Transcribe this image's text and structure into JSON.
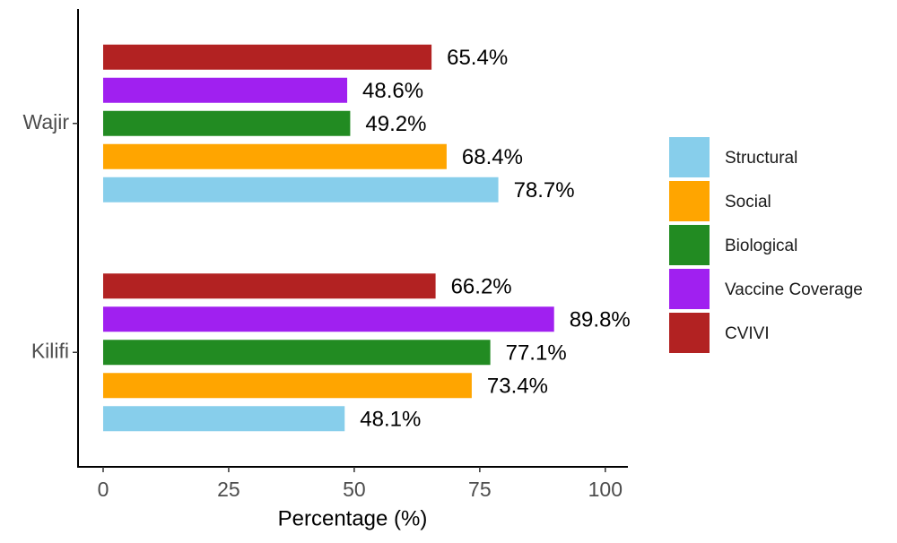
{
  "chart_data": {
    "type": "bar",
    "orientation": "horizontal",
    "categories": [
      "Wajir",
      "Kilifi"
    ],
    "series": [
      {
        "name": "Structural",
        "color": "#87ceeb",
        "values": [
          78.7,
          48.1
        ],
        "value_labels": [
          "78.7%",
          "48.1%"
        ]
      },
      {
        "name": "Social",
        "color": "#ffa500",
        "values": [
          68.4,
          73.4
        ],
        "value_labels": [
          "68.4%",
          "73.4%"
        ]
      },
      {
        "name": "Biological",
        "color": "#228b22",
        "values": [
          49.2,
          77.1
        ],
        "value_labels": [
          "49.2%",
          "77.1%"
        ]
      },
      {
        "name": "Vaccine Coverage",
        "color": "#a020f0",
        "values": [
          48.6,
          89.8
        ],
        "value_labels": [
          "48.6%",
          "89.8%"
        ]
      },
      {
        "name": "CVIVI",
        "color": "#b22222",
        "values": [
          65.4,
          66.2
        ],
        "value_labels": [
          "65.4%",
          "66.2%"
        ]
      }
    ],
    "xlabel": "Percentage (%)",
    "xlim": [
      -5,
      104.5
    ],
    "xticks": [
      0,
      25,
      50,
      75,
      100
    ],
    "legend": "right"
  }
}
